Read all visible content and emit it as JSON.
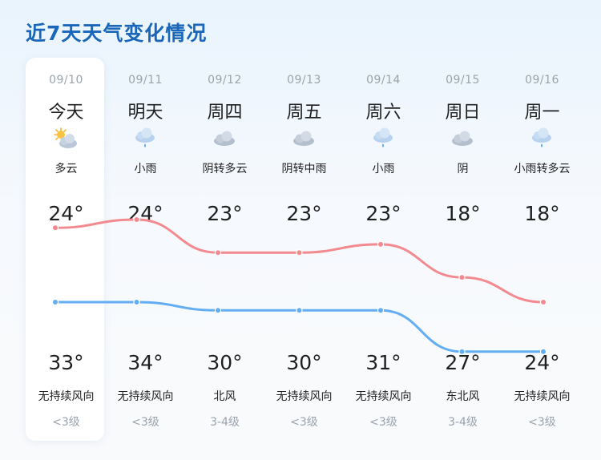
{
  "title": "近7天天气变化情况",
  "colors": {
    "title": "#1a66b8",
    "high_line": "#f28a8f",
    "low_line": "#63aef2"
  },
  "days": [
    {
      "date": "09/10",
      "name": "今天",
      "icon": "partly-cloudy-icon",
      "condition": "多云",
      "high": "24°",
      "low": "33°",
      "wind": "无持续风向",
      "level": "<3级"
    },
    {
      "date": "09/11",
      "name": "明天",
      "icon": "light-rain-icon",
      "condition": "小雨",
      "high": "24°",
      "low": "34°",
      "wind": "无持续风向",
      "level": "<3级"
    },
    {
      "date": "09/12",
      "name": "周四",
      "icon": "cloudy-icon",
      "condition": "阴转多云",
      "high": "23°",
      "low": "30°",
      "wind": "北风",
      "level": "3-4级"
    },
    {
      "date": "09/13",
      "name": "周五",
      "icon": "cloudy-icon",
      "condition": "阴转中雨",
      "high": "23°",
      "low": "30°",
      "wind": "无持续风向",
      "level": "<3级"
    },
    {
      "date": "09/14",
      "name": "周六",
      "icon": "light-rain-icon",
      "condition": "小雨",
      "high": "23°",
      "low": "31°",
      "wind": "无持续风向",
      "level": "<3级"
    },
    {
      "date": "09/15",
      "name": "周日",
      "icon": "cloudy-icon",
      "condition": "阴",
      "high": "18°",
      "low": "27°",
      "wind": "东北风",
      "level": "3-4级"
    },
    {
      "date": "09/16",
      "name": "周一",
      "icon": "light-rain-icon",
      "condition": "小雨转多云",
      "high": "18°",
      "low": "24°",
      "wind": "无持续风向",
      "level": "<3级"
    }
  ],
  "chart_data": {
    "type": "line",
    "categories": [
      "09/10",
      "09/11",
      "09/12",
      "09/13",
      "09/14",
      "09/15",
      "09/16"
    ],
    "series": [
      {
        "values": [
          24,
          24,
          23,
          23,
          23,
          18,
          18
        ]
      },
      {
        "values": [
          33,
          34,
          30,
          30,
          31,
          27,
          24
        ]
      }
    ]
  }
}
